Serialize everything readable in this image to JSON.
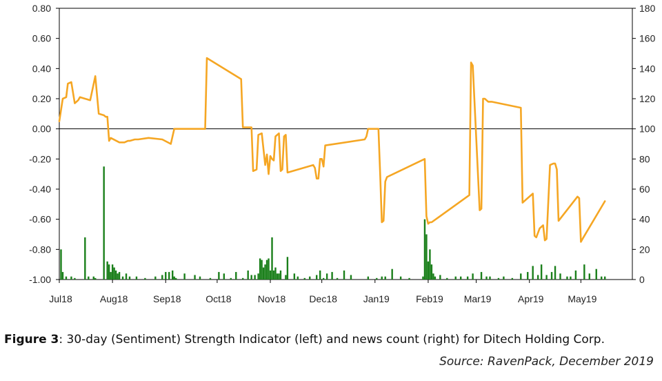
{
  "chart_data": {
    "type": "line",
    "x_dates": [
      "2018-07-01",
      "2018-07-03",
      "2018-07-05",
      "2018-07-06",
      "2018-07-08",
      "2018-07-10",
      "2018-07-12",
      "2018-07-13",
      "2018-07-16",
      "2018-07-19",
      "2018-07-22",
      "2018-07-24",
      "2018-07-27",
      "2018-07-28",
      "2018-07-29",
      "2018-07-30",
      "2018-07-31",
      "2018-08-05",
      "2018-08-08",
      "2018-08-10",
      "2018-08-11",
      "2018-08-14",
      "2018-08-16",
      "2018-08-22",
      "2018-08-30",
      "2018-09-04",
      "2018-09-06",
      "2018-09-07",
      "2018-09-08",
      "2018-09-09",
      "2018-09-24",
      "2018-09-25",
      "2018-10-15",
      "2018-10-16",
      "2018-10-21",
      "2018-10-22",
      "2018-10-24",
      "2018-10-25",
      "2018-10-27",
      "2018-10-29",
      "2018-10-30",
      "2018-10-31",
      "2018-11-01",
      "2018-11-02",
      "2018-11-03",
      "2018-11-04",
      "2018-11-06",
      "2018-11-07",
      "2018-11-08",
      "2018-11-09",
      "2018-11-10",
      "2018-11-11",
      "2018-11-26",
      "2018-11-27",
      "2018-11-28",
      "2018-11-29",
      "2018-11-30",
      "2018-12-01",
      "2018-12-02",
      "2018-12-03",
      "2018-12-26",
      "2018-12-27",
      "2018-12-28",
      "2019-01-03",
      "2019-01-04",
      "2019-01-05",
      "2019-01-06",
      "2019-01-07",
      "2019-01-08",
      "2019-01-30",
      "2019-01-31",
      "2019-02-01",
      "2019-02-02",
      "2019-02-03",
      "2019-02-25",
      "2019-02-26",
      "2019-02-27",
      "2019-03-03",
      "2019-03-04",
      "2019-03-05",
      "2019-03-06",
      "2019-03-07",
      "2019-03-08",
      "2019-03-09",
      "2019-03-10",
      "2019-03-27",
      "2019-03-28",
      "2019-04-03",
      "2019-04-04",
      "2019-04-05",
      "2019-04-07",
      "2019-04-09",
      "2019-04-10",
      "2019-04-11",
      "2019-04-13",
      "2019-04-15",
      "2019-04-16",
      "2019-04-17",
      "2019-04-18",
      "2019-04-29",
      "2019-04-30",
      "2019-05-01",
      "2019-05-02",
      "2019-05-15"
    ],
    "series": [
      {
        "axis": "left",
        "type": "line",
        "color": "#f5a623",
        "values": [
          0.05,
          0.2,
          0.21,
          0.3,
          0.31,
          0.17,
          0.19,
          0.21,
          0.2,
          0.19,
          0.35,
          0.1,
          0.09,
          0.08,
          0.08,
          -0.08,
          -0.06,
          -0.09,
          -0.09,
          -0.08,
          -0.08,
          -0.07,
          -0.07,
          -0.06,
          -0.07,
          -0.1,
          0.0,
          0.0,
          0.0,
          0.0,
          0.0,
          0.47,
          0.33,
          0.01,
          0.01,
          -0.28,
          -0.27,
          -0.04,
          -0.03,
          -0.24,
          -0.17,
          -0.3,
          -0.18,
          -0.2,
          -0.21,
          -0.05,
          -0.03,
          -0.28,
          -0.27,
          -0.05,
          -0.04,
          -0.29,
          -0.24,
          -0.26,
          -0.33,
          -0.33,
          -0.2,
          -0.2,
          -0.25,
          -0.11,
          -0.07,
          -0.05,
          0.0,
          0.0,
          -0.3,
          -0.62,
          -0.61,
          -0.35,
          -0.32,
          -0.2,
          -0.58,
          -0.63,
          -0.62,
          -0.62,
          -0.44,
          0.44,
          0.42,
          -0.54,
          -0.53,
          0.2,
          0.2,
          0.19,
          0.18,
          0.18,
          0.18,
          0.14,
          -0.49,
          -0.43,
          -0.71,
          -0.72,
          -0.66,
          -0.64,
          -0.74,
          -0.73,
          -0.24,
          -0.23,
          -0.23,
          -0.27,
          -0.61,
          -0.45,
          -0.46,
          -0.75,
          -0.73,
          -0.48
        ]
      },
      {
        "axis": "right",
        "type": "bar",
        "color": "#1a7f1a",
        "dates": [
          "2018-07-02",
          "2018-07-03",
          "2018-07-05",
          "2018-07-08",
          "2018-07-10",
          "2018-07-16",
          "2018-07-18",
          "2018-07-21",
          "2018-07-22",
          "2018-07-27",
          "2018-07-29",
          "2018-07-30",
          "2018-07-31",
          "2018-08-01",
          "2018-08-02",
          "2018-08-03",
          "2018-08-04",
          "2018-08-05",
          "2018-08-07",
          "2018-08-09",
          "2018-08-11",
          "2018-08-15",
          "2018-08-20",
          "2018-08-26",
          "2018-08-30",
          "2018-09-01",
          "2018-09-03",
          "2018-09-05",
          "2018-09-06",
          "2018-09-07",
          "2018-09-12",
          "2018-09-18",
          "2018-09-21",
          "2018-09-27",
          "2018-10-02",
          "2018-10-05",
          "2018-10-09",
          "2018-10-12",
          "2018-10-16",
          "2018-10-19",
          "2018-10-21",
          "2018-10-23",
          "2018-10-25",
          "2018-10-26",
          "2018-10-27",
          "2018-10-28",
          "2018-10-29",
          "2018-10-30",
          "2018-10-31",
          "2018-11-01",
          "2018-11-02",
          "2018-11-03",
          "2018-11-04",
          "2018-11-05",
          "2018-11-06",
          "2018-11-07",
          "2018-11-10",
          "2018-11-11",
          "2018-11-15",
          "2018-11-17",
          "2018-11-21",
          "2018-11-24",
          "2018-11-28",
          "2018-11-30",
          "2018-12-02",
          "2018-12-04",
          "2018-12-07",
          "2018-12-10",
          "2018-12-14",
          "2018-12-18",
          "2018-12-28",
          "2019-01-02",
          "2019-01-05",
          "2019-01-07",
          "2019-01-11",
          "2019-01-16",
          "2019-01-21",
          "2019-01-29",
          "2019-01-30",
          "2019-01-31",
          "2019-02-01",
          "2019-02-02",
          "2019-02-03",
          "2019-02-04",
          "2019-02-05",
          "2019-02-08",
          "2019-02-12",
          "2019-02-17",
          "2019-02-20",
          "2019-02-24",
          "2019-02-27",
          "2019-03-04",
          "2019-03-07",
          "2019-03-09",
          "2019-03-14",
          "2019-03-17",
          "2019-03-22",
          "2019-03-27",
          "2019-03-31",
          "2019-04-03",
          "2019-04-06",
          "2019-04-08",
          "2019-04-11",
          "2019-04-14",
          "2019-04-16",
          "2019-04-19",
          "2019-04-23",
          "2019-04-25",
          "2019-04-28",
          "2019-05-03",
          "2019-05-06",
          "2019-05-10",
          "2019-05-13",
          "2019-05-15"
        ],
        "values": [
          20,
          5,
          2,
          2,
          1,
          28,
          2,
          2,
          1,
          75,
          12,
          10,
          5,
          10,
          8,
          6,
          4,
          5,
          2,
          4,
          2,
          2,
          1,
          2,
          3,
          5,
          5,
          6,
          2,
          1,
          4,
          3,
          2,
          1,
          5,
          4,
          1,
          5,
          1,
          6,
          3,
          3,
          4,
          14,
          13,
          8,
          10,
          13,
          14,
          6,
          28,
          6,
          8,
          4,
          4,
          6,
          3,
          15,
          4,
          2,
          1,
          2,
          3,
          6,
          1,
          4,
          5,
          1,
          6,
          3,
          2,
          1,
          2,
          2,
          7,
          2,
          1,
          2,
          40,
          30,
          12,
          20,
          10,
          4,
          2,
          3,
          1,
          2,
          2,
          2,
          4,
          5,
          2,
          2,
          1,
          2,
          1,
          4,
          5,
          9,
          3,
          10,
          3,
          5,
          9,
          4,
          2,
          2,
          6,
          10,
          4,
          7,
          2,
          2
        ]
      }
    ],
    "left_axis": {
      "ylim": [
        -1.0,
        0.8
      ],
      "ticks": [
        "0.80",
        "0.60",
        "0.40",
        "0.20",
        "0.00",
        "-0.20",
        "-0.40",
        "-0.60",
        "-0.80",
        "-1.00"
      ]
    },
    "right_axis": {
      "ylim": [
        0,
        180
      ],
      "ticks": [
        "180",
        "160",
        "140",
        "120",
        "100",
        "80",
        "60",
        "40",
        "20",
        "0"
      ]
    },
    "x_axis": {
      "range": [
        "2018-07-01",
        "2019-05-31"
      ],
      "tick_dates": [
        "2018-07-01",
        "2018-08-01",
        "2018-09-01",
        "2018-10-01",
        "2018-11-01",
        "2018-12-01",
        "2019-01-01",
        "2019-02-01",
        "2019-03-01",
        "2019-04-01",
        "2019-05-01"
      ],
      "tick_labels": [
        "Jul18",
        "Aug18",
        "Sep18",
        "Oct18",
        "Nov18",
        "Dec18",
        "Jan19",
        "Feb19",
        "Mar19",
        "Apr19",
        "May19"
      ]
    },
    "zero_line": 0.0,
    "grid": false
  },
  "caption": {
    "label": "Figure 3",
    "text": ": 30-day (Sentiment) Strength Indicator (left) and news count (right) for Ditech Holding Corp."
  },
  "source": "Source: RavenPack, December 2019"
}
